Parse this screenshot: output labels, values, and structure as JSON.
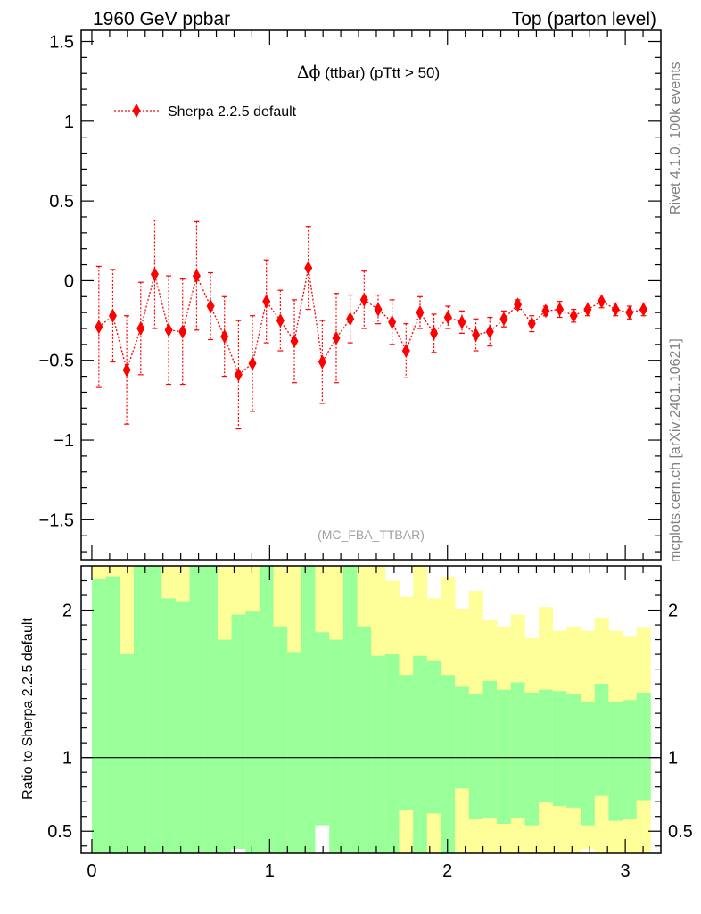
{
  "header": {
    "left": "1960 GeV ppbar",
    "right": "Top (parton level)"
  },
  "side_labels": {
    "rivet": "Rivet 4.1.0,  100k events",
    "mcplots": "mcplots.cern.ch [arXiv:2401.10621]"
  },
  "analysis_id": "(MC_FBA_TTBAR)",
  "colors": {
    "data": "#ff0000",
    "band_inner": "#99ff99",
    "band_outer": "#ffff99",
    "axis": "#000000"
  },
  "chart_data": [
    {
      "panel": "main",
      "type": "line",
      "title_symbol": "Δϕ",
      "title_rest": " (ttbar) (pTtt > 50)",
      "xlim": [
        -0.06,
        3.2
      ],
      "ylim": [
        -1.75,
        1.57
      ],
      "yticks": [
        1.5,
        1,
        0.5,
        0,
        -0.5,
        -1,
        -1.5
      ],
      "ytick_labels": [
        "1.5",
        "1",
        "0.5",
        "0",
        "−0.5",
        "−1",
        "−1.5"
      ],
      "legend": {
        "label": "Sherpa 2.2.5 default",
        "position": "top-left"
      },
      "series": [
        {
          "name": "Sherpa 2.2.5 default",
          "marker": "diamond",
          "line": "dotted",
          "x": [
            0.0393,
            0.1178,
            0.1963,
            0.2749,
            0.3534,
            0.432,
            0.5105,
            0.589,
            0.6676,
            0.7461,
            0.8247,
            0.9032,
            0.9817,
            1.0603,
            1.1388,
            1.2174,
            1.2959,
            1.3744,
            1.453,
            1.5315,
            1.6101,
            1.6886,
            1.7671,
            1.8457,
            1.9242,
            2.0028,
            2.0813,
            2.1598,
            2.2384,
            2.3169,
            2.3955,
            2.474,
            2.5525,
            2.6311,
            2.7096,
            2.7882,
            2.8667,
            2.9452,
            3.0238,
            3.1023
          ],
          "y": [
            -0.29,
            -0.22,
            -0.56,
            -0.3,
            0.04,
            -0.31,
            -0.32,
            0.03,
            -0.16,
            -0.35,
            -0.59,
            -0.52,
            -0.13,
            -0.25,
            -0.38,
            0.08,
            -0.51,
            -0.36,
            -0.24,
            -0.12,
            -0.18,
            -0.26,
            -0.44,
            -0.2,
            -0.33,
            -0.23,
            -0.26,
            -0.34,
            -0.32,
            -0.24,
            -0.15,
            -0.27,
            -0.19,
            -0.18,
            -0.22,
            -0.18,
            -0.13,
            -0.18,
            -0.2,
            -0.18
          ],
          "yerr": [
            0.38,
            0.29,
            0.34,
            0.29,
            0.34,
            0.34,
            0.33,
            0.34,
            0.21,
            0.25,
            0.34,
            0.3,
            0.26,
            0.19,
            0.26,
            0.26,
            0.26,
            0.28,
            0.15,
            0.18,
            0.09,
            0.14,
            0.17,
            0.1,
            0.12,
            0.07,
            0.07,
            0.1,
            0.09,
            0.05,
            0.03,
            0.05,
            0.03,
            0.05,
            0.04,
            0.04,
            0.04,
            0.04,
            0.04,
            0.04
          ]
        }
      ]
    },
    {
      "panel": "ratio",
      "type": "area",
      "ylabel": "Ratio to Sherpa 2.2.5 default",
      "ylim": [
        0.35,
        2.3
      ],
      "yticks": [
        2,
        1,
        0.5
      ],
      "ytick_labels": [
        "2",
        "1",
        "0.5"
      ],
      "xlim": [
        -0.06,
        3.2
      ],
      "xticks": [
        0,
        1,
        2,
        3
      ],
      "xtick_labels": [
        "0",
        "1",
        "2",
        "3"
      ],
      "bin_edges": [
        0.0,
        0.0785,
        0.1571,
        0.2356,
        0.3142,
        0.3927,
        0.4712,
        0.5498,
        0.6283,
        0.7069,
        0.7854,
        0.8639,
        0.9425,
        1.021,
        1.0996,
        1.1781,
        1.2566,
        1.3352,
        1.4137,
        1.4923,
        1.5708,
        1.6493,
        1.7279,
        1.8064,
        1.885,
        1.9635,
        2.042,
        2.1206,
        2.1991,
        2.2777,
        2.3562,
        2.4347,
        2.5133,
        2.5918,
        2.6704,
        2.7489,
        2.8274,
        2.906,
        2.9845,
        3.0631,
        3.1416
      ],
      "band_outer_up": [
        2.3,
        2.3,
        2.3,
        2.3,
        2.3,
        2.3,
        2.3,
        2.3,
        2.3,
        2.3,
        2.3,
        2.3,
        2.3,
        2.3,
        2.3,
        2.3,
        2.3,
        2.3,
        2.3,
        2.3,
        2.3,
        2.2,
        2.09,
        2.3,
        2.08,
        2.22,
        2.01,
        2.13,
        1.93,
        1.89,
        1.97,
        1.81,
        2.02,
        1.86,
        1.89,
        1.86,
        1.95,
        1.86,
        1.82,
        1.88
      ],
      "band_inner_up": [
        2.21,
        2.23,
        1.7,
        2.3,
        2.3,
        2.08,
        2.06,
        2.3,
        2.3,
        1.8,
        1.97,
        1.99,
        2.3,
        1.89,
        1.71,
        2.3,
        1.85,
        1.8,
        2.3,
        1.89,
        1.69,
        1.7,
        1.56,
        1.69,
        1.66,
        1.56,
        1.48,
        1.43,
        1.52,
        1.46,
        1.51,
        1.44,
        1.46,
        1.45,
        1.43,
        1.38,
        1.5,
        1.38,
        1.39,
        1.44
      ],
      "band_inner_down": [
        0.35,
        0.35,
        0.35,
        0.35,
        0.35,
        0.35,
        0.35,
        0.35,
        0.35,
        0.35,
        0.35,
        0.35,
        0.35,
        0.35,
        0.35,
        0.35,
        0.35,
        0.35,
        0.35,
        0.35,
        0.35,
        0.35,
        0.35,
        0.35,
        0.35,
        0.35,
        0.35,
        0.35,
        0.35,
        0.35,
        0.35,
        0.35,
        0.35,
        0.35,
        0.35,
        0.35,
        0.35,
        0.35,
        0.35,
        0.35
      ],
      "band_outer_down": [
        0.35,
        0.35,
        0.35,
        0.35,
        0.35,
        0.35,
        0.35,
        0.35,
        0.35,
        0.35,
        0.35,
        0.35,
        0.35,
        0.35,
        0.35,
        0.35,
        0.35,
        0.35,
        0.35,
        0.35,
        0.35,
        0.35,
        0.35,
        0.35,
        0.35,
        0.35,
        0.35,
        0.35,
        0.35,
        0.35,
        0.35,
        0.35,
        0.35,
        0.35,
        0.35,
        0.35,
        0.35,
        0.35,
        0.35,
        0.35
      ],
      "green_down": [
        0.35,
        0.35,
        0.35,
        0.35,
        0.35,
        0.35,
        0.35,
        0.35,
        0.35,
        0.35,
        0.35,
        0.35,
        0.35,
        0.35,
        0.35,
        0.35,
        0.35,
        0.35,
        0.35,
        0.35,
        0.35,
        0.35,
        0.64,
        0.35,
        0.62,
        0.35,
        0.79,
        0.58,
        0.59,
        0.55,
        0.59,
        0.54,
        0.7,
        0.67,
        0.66,
        0.54,
        0.74,
        0.57,
        0.58,
        0.71
      ],
      "yellow_down": [
        0.35,
        0.35,
        0.35,
        0.35,
        0.35,
        0.35,
        0.35,
        0.35,
        0.35,
        0.35,
        0.38,
        0.35,
        0.35,
        0.35,
        0.35,
        0.35,
        0.54,
        0.35,
        0.35,
        0.35,
        0.35,
        0.35,
        0.35,
        0.35,
        0.35,
        0.35,
        0.35,
        0.35,
        0.35,
        0.35,
        0.35,
        0.35,
        0.35,
        0.35,
        0.35,
        0.38,
        0.35,
        0.35,
        0.35,
        0.35
      ],
      "reference": 1.0
    }
  ]
}
